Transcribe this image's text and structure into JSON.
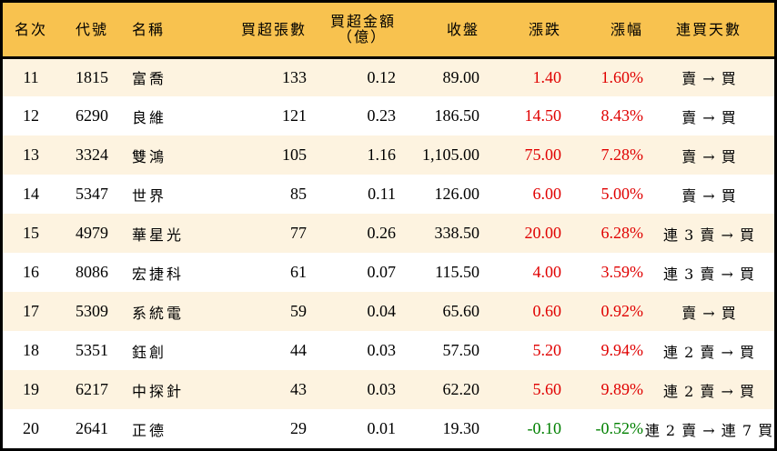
{
  "table": {
    "headers": {
      "rank": "名次",
      "code": "代號",
      "name": "名稱",
      "net_buy_lots": "買超張數",
      "net_buy_amount_line1": "買超金額",
      "net_buy_amount_line2": "（億）",
      "close": "收盤",
      "change": "漲跌",
      "change_pct": "漲幅",
      "consecutive_days": "連買天數"
    },
    "colors": {
      "header_bg": "#F8C24F",
      "row_alt_bg": "#FDF3E0",
      "up": "#E00000",
      "down": "#008000"
    },
    "rows": [
      {
        "rank": "11",
        "code": "1815",
        "name": "富喬",
        "lots": "133",
        "amount": "0.12",
        "close": "89.00",
        "change": "1.40",
        "pct": "1.60%",
        "streak": "賣 → 買",
        "dir": "up"
      },
      {
        "rank": "12",
        "code": "6290",
        "name": "良維",
        "lots": "121",
        "amount": "0.23",
        "close": "186.50",
        "change": "14.50",
        "pct": "8.43%",
        "streak": "賣 → 買",
        "dir": "up"
      },
      {
        "rank": "13",
        "code": "3324",
        "name": "雙鴻",
        "lots": "105",
        "amount": "1.16",
        "close": "1,105.00",
        "change": "75.00",
        "pct": "7.28%",
        "streak": "賣 → 買",
        "dir": "up"
      },
      {
        "rank": "14",
        "code": "5347",
        "name": "世界",
        "lots": "85",
        "amount": "0.11",
        "close": "126.00",
        "change": "6.00",
        "pct": "5.00%",
        "streak": "賣 → 買",
        "dir": "up"
      },
      {
        "rank": "15",
        "code": "4979",
        "name": "華星光",
        "lots": "77",
        "amount": "0.26",
        "close": "338.50",
        "change": "20.00",
        "pct": "6.28%",
        "streak": "連 3 賣 → 買",
        "dir": "up"
      },
      {
        "rank": "16",
        "code": "8086",
        "name": "宏捷科",
        "lots": "61",
        "amount": "0.07",
        "close": "115.50",
        "change": "4.00",
        "pct": "3.59%",
        "streak": "連 3 賣 → 買",
        "dir": "up"
      },
      {
        "rank": "17",
        "code": "5309",
        "name": "系統電",
        "lots": "59",
        "amount": "0.04",
        "close": "65.60",
        "change": "0.60",
        "pct": "0.92%",
        "streak": "賣 → 買",
        "dir": "up"
      },
      {
        "rank": "18",
        "code": "5351",
        "name": "鈺創",
        "lots": "44",
        "amount": "0.03",
        "close": "57.50",
        "change": "5.20",
        "pct": "9.94%",
        "streak": "連 2 賣 → 買",
        "dir": "up"
      },
      {
        "rank": "19",
        "code": "6217",
        "name": "中探針",
        "lots": "43",
        "amount": "0.03",
        "close": "62.20",
        "change": "5.60",
        "pct": "9.89%",
        "streak": "連 2 賣 → 買",
        "dir": "up"
      },
      {
        "rank": "20",
        "code": "2641",
        "name": "正德",
        "lots": "29",
        "amount": "0.01",
        "close": "19.30",
        "change": "-0.10",
        "pct": "-0.52%",
        "streak": "連 2 賣 → 連 7 買",
        "dir": "down"
      }
    ]
  }
}
